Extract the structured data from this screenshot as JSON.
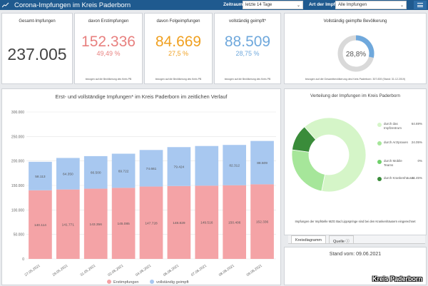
{
  "header": {
    "title": "Corona-Impfungen im Kreis Paderborn",
    "filter1_label": "Zeitraum",
    "filter1_value": "letzte 14 Tage",
    "filter2_label": "Art der Impfung",
    "filter2_value": "Alle Impfungen",
    "icons": [
      "logo-icon",
      "chevron-down-icon",
      "menu-icon"
    ]
  },
  "kpis": [
    {
      "title": "Gesamt-Impfungen",
      "value": "237.005",
      "pct": "",
      "note": "",
      "color": "#444444"
    },
    {
      "title": "davon Erstimpfungen",
      "value": "152.336",
      "pct": "49,49 %",
      "note": "bezogen auf die Bevölkerung des Kreis PB",
      "color": "#e8807f"
    },
    {
      "title": "davon Folgeimpfungen",
      "value": "84.669",
      "pct": "27,5 %",
      "note": "bezogen auf die Bevölkerung des Kreis PB",
      "color": "#f0a020"
    },
    {
      "title": "vollständig geimpft*",
      "value": "88.509",
      "pct": "28,75 %",
      "note": "bezogen auf die Bevölkerung des Kreis PB",
      "color": "#6fa8dc"
    }
  ],
  "gauge": {
    "title": "Vollständig geimpfte Bevölkerung",
    "value_label": "28,8%",
    "fraction": 0.288,
    "note": "bezogen auf die Gesamtbevölkerung des Kreis Paderborn: 307.839 (Stand: 31.12.2019)",
    "color": "#6fa8dc"
  },
  "bar_chart": {
    "title": "Erst- und vollständige Impfungen* im Kreis Paderborn im zeitlichen Verlauf",
    "legend": [
      "Erstimpfungen",
      "vollständig geimpft"
    ]
  },
  "donut_chart": {
    "title": "Verteilung der Impfungen im Kreis Paderborn",
    "footnote": "Impfungen der Impfstelle MZG Bad Lippspringe sind bei den Krankenhäusern eingerechnet"
  },
  "tabs": [
    "Kreisdiagramm",
    "Quelle ⓘ"
  ],
  "stand": "Stand vom: 09.06.2021",
  "watermark": "Kreis Paderborn",
  "chart_data": [
    {
      "type": "bar",
      "title": "Erst- und vollständige Impfungen* im Kreis Paderborn im zeitlichen Verlauf",
      "categories": [
        "27.05.2021",
        "29.05.2021",
        "31.05.2021",
        "02.06.2021",
        "04.06.2021",
        "06.06.2021",
        "07.06.2021",
        "08.06.2021",
        "09.06.2021"
      ],
      "ylim": [
        0,
        300000
      ],
      "yticks": [
        "0",
        "50.000",
        "100.000",
        "150.000",
        "200.000",
        "250.000",
        "300.000"
      ],
      "stacked": true,
      "series": [
        {
          "name": "Erstimpfungen",
          "color": "#f4a3a6",
          "values": [
            140114,
            141771,
            143356,
            145085,
            147728,
            148829,
            149516,
            150406,
            152336
          ],
          "labels": [
            "140.114",
            "141.771",
            "143.356",
            "145.085",
            "147.728",
            "148.829",
            "149.516",
            "150.406",
            "152.336"
          ]
        },
        {
          "name": "vollständig geimpft",
          "color": "#a8c8f0",
          "values": [
            58113,
            64350,
            66500,
            69722,
            74661,
            79424,
            81000,
            82312,
            88509
          ],
          "labels": [
            "58.113",
            "64.350",
            "66.500",
            "69.722",
            "74.661",
            "79.424",
            "",
            "82.312",
            "88.509"
          ]
        }
      ],
      "grid": true,
      "legend": "bottom"
    },
    {
      "type": "pie",
      "title": "Verteilung der Impfungen im Kreis Paderborn",
      "donut": true,
      "slices": [
        {
          "label": "durch das Impfzentrum",
          "value": 64.69,
          "pct": "64.69%",
          "color": "#d5f5c8"
        },
        {
          "label": "durch Arztpraxen",
          "value": 24.05,
          "pct": "24.05%",
          "color": "#a6e69a"
        },
        {
          "label": "durch Mobile Teams",
          "value": 0,
          "pct": "0%",
          "color": "#6fd06a"
        },
        {
          "label": "durch Krankenhäuser",
          "value": 11.45,
          "pct": "11.45%",
          "color": "#3a8c3a"
        }
      ]
    }
  ]
}
